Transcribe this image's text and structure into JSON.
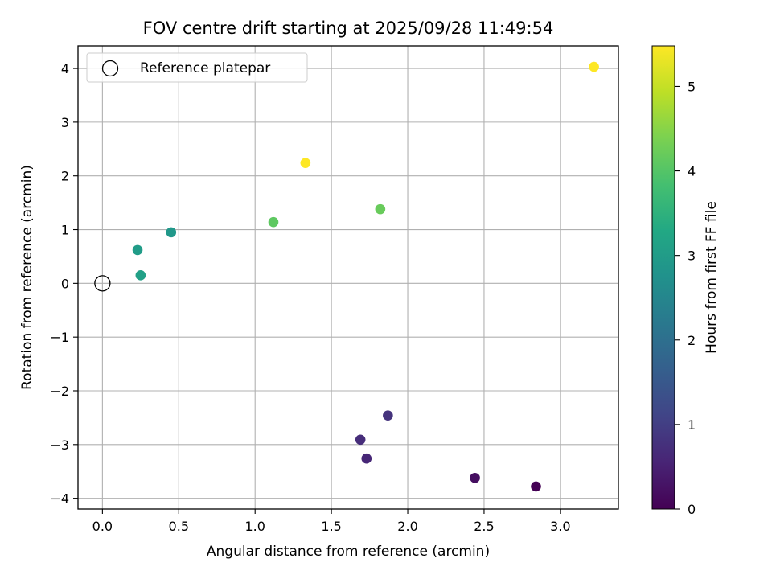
{
  "chart_data": {
    "type": "scatter",
    "title": "FOV centre drift starting at 2025/09/28 11:49:54",
    "xlabel": "Angular distance from reference (arcmin)",
    "ylabel": "Rotation from reference (arcmin)",
    "xlim": [
      -0.16,
      3.38
    ],
    "ylim": [
      -4.2,
      4.42
    ],
    "xticks": [
      0.0,
      0.5,
      1.0,
      1.5,
      2.0,
      2.5,
      3.0
    ],
    "xtick_labels": [
      "0.0",
      "0.5",
      "1.0",
      "1.5",
      "2.0",
      "2.5",
      "3.0"
    ],
    "yticks": [
      -4,
      -3,
      -2,
      -1,
      0,
      1,
      2,
      3,
      4
    ],
    "ytick_labels": [
      "−4",
      "−3",
      "−2",
      "−1",
      "0",
      "1",
      "2",
      "3",
      "4"
    ],
    "grid": true,
    "legend": {
      "position": "top-left",
      "entries": [
        "Reference platepar"
      ]
    },
    "reference_point": {
      "x": 0,
      "y": 0,
      "label": "Reference platepar"
    },
    "colorbar": {
      "label": "Hours from first FF file",
      "range": [
        0,
        5.48
      ],
      "ticks": [
        0,
        1,
        2,
        3,
        4,
        5
      ],
      "tick_labels": [
        "0",
        "1",
        "2",
        "3",
        "4",
        "5"
      ],
      "colormap": "viridis"
    },
    "points": [
      {
        "x": 2.84,
        "y": -3.78,
        "hours": 0.0
      },
      {
        "x": 2.44,
        "y": -3.62,
        "hours": 0.2
      },
      {
        "x": 1.73,
        "y": -3.26,
        "hours": 0.6
      },
      {
        "x": 1.69,
        "y": -2.91,
        "hours": 0.7
      },
      {
        "x": 1.87,
        "y": -2.46,
        "hours": 0.8
      },
      {
        "x": 0.45,
        "y": 0.95,
        "hours": 2.9
      },
      {
        "x": 0.23,
        "y": 0.62,
        "hours": 3.0
      },
      {
        "x": 0.25,
        "y": 0.15,
        "hours": 3.1
      },
      {
        "x": 1.12,
        "y": 1.14,
        "hours": 4.1
      },
      {
        "x": 1.82,
        "y": 1.38,
        "hours": 4.2
      },
      {
        "x": 1.33,
        "y": 2.24,
        "hours": 5.48
      },
      {
        "x": 3.22,
        "y": 4.03,
        "hours": 5.48
      }
    ]
  }
}
